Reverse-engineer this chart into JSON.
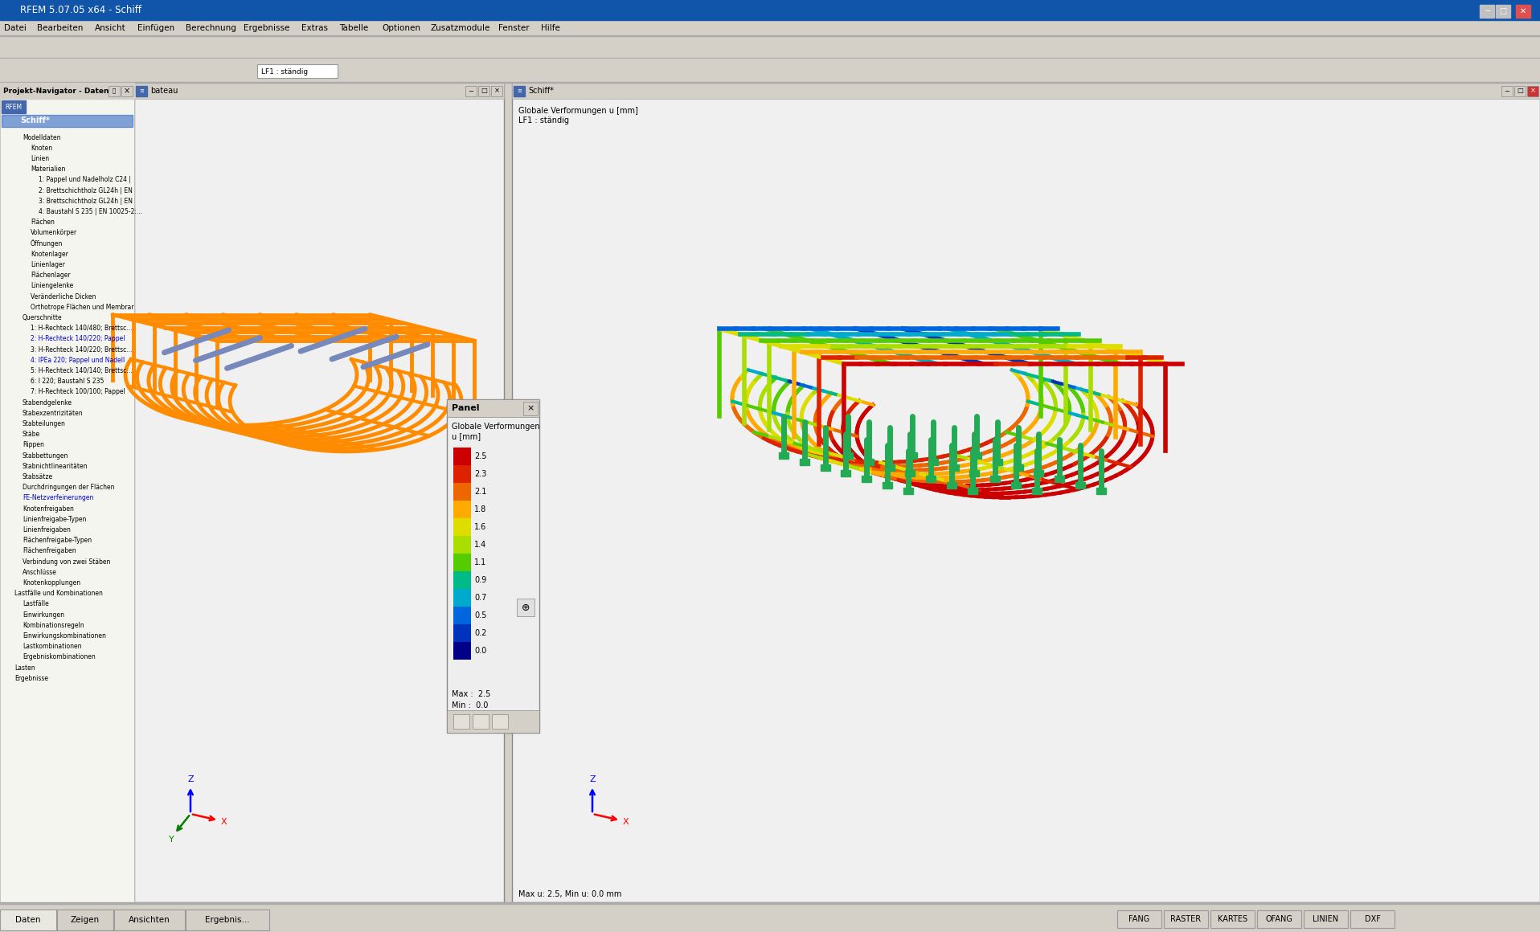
{
  "title_bar": "RFEM 5.07.05 x64 - Schiff",
  "bg_color": "#d4d0c8",
  "left_panel_bg": "#f5f5f0",
  "left_panel_title": "Projekt-Navigator - Daten",
  "left_panel_items": [
    "RFEM",
    "  Schiff*",
    "    Modelldaten",
    "      Knoten",
    "      Linien",
    "      Materialien",
    "        1: Pappel und Nadelholz C24 |",
    "        2: Brettschichtholz GL24h | EN",
    "        3: Brettschichtholz GL24h | EN",
    "        4: Baustahl S 235 | EN 10025-2:...",
    "      Flächen",
    "      Volumenkörper",
    "      Öffnungen",
    "      Knotenlager",
    "      Linienlager",
    "      Flächenlager",
    "      Liniengelenke",
    "      Veränderliche Dicken",
    "      Orthotrope Flächen und Membrar",
    "    Querschnitte",
    "      1: H-Rechteck 140/480; Brettsc...",
    "      2: H-Rechteck 140/220; Pappel",
    "      3: H-Rechteck 140/220; Brettsc...",
    "      4: IPEa 220; Pappel und Nadell",
    "      5: H-Rechteck 140/140; Brettsc...",
    "      6: I 220; Baustahl S 235",
    "      7: H-Rechteck 100/100; Pappel",
    "    Stabendgelenke",
    "    Stabexzentrizitäten",
    "    Stabteilungen",
    "    Stäbe",
    "    Rippen",
    "    Stabbettungen",
    "    Stabnichtlinearitäten",
    "    Stabsätze",
    "    Durchdringungen der Flächen",
    "    FE-Netzverfeinerungen",
    "    Knotenfreigaben",
    "    Linienfreigabe-Typen",
    "    Linienfreigaben",
    "    Flächenfreigabe-Typen",
    "    Flächenfreigaben",
    "    Verbindung von zwei Stäben",
    "    Anschlüsse",
    "    Knotenkopplungen",
    "  Lastfälle und Kombinationen",
    "    Lastfälle",
    "    Einwirkungen",
    "    Kombinationsregeln",
    "    Einwirkungskombinationen",
    "    Lastkombinationen",
    "    Ergebniskombinationen",
    "  Lasten",
    "  Ergebnisse"
  ],
  "left_subpanel_title": "bateau",
  "right_window_title": "Schiff*",
  "panel_title": "Panel",
  "panel_subtitle": "Globale Verformungen",
  "panel_unit": "u [mm]",
  "colorbar_values": [
    "2.5",
    "2.3",
    "2.1",
    "1.8",
    "1.6",
    "1.4",
    "1.1",
    "0.9",
    "0.7",
    "0.5",
    "0.2",
    "0.0"
  ],
  "colorbar_colors": [
    "#cc0000",
    "#dd2200",
    "#ee6600",
    "#ffaa00",
    "#dddd00",
    "#aadd00",
    "#55cc00",
    "#00bb88",
    "#00aacc",
    "#0066dd",
    "#0033bb",
    "#000088"
  ],
  "panel_max": "Max :  2.5",
  "panel_min": "Min :  0.0",
  "status_items": [
    "FANG",
    "RASTER",
    "KARTES",
    "OFANG",
    "LINIEN",
    "DXF"
  ],
  "orange": "#FF8C00",
  "blue_accent": "#7788BB",
  "viewport_bg": "#f0f0f0",
  "grid_color": "#cccccc",
  "menu_items": [
    "Datei",
    "Bearbeiten",
    "Ansicht",
    "Einfügen",
    "Berechnung",
    "Ergebnisse",
    "Extras",
    "Tabelle",
    "Optionen",
    "Zusatzmodule",
    "Fenster",
    "Hilfe"
  ]
}
